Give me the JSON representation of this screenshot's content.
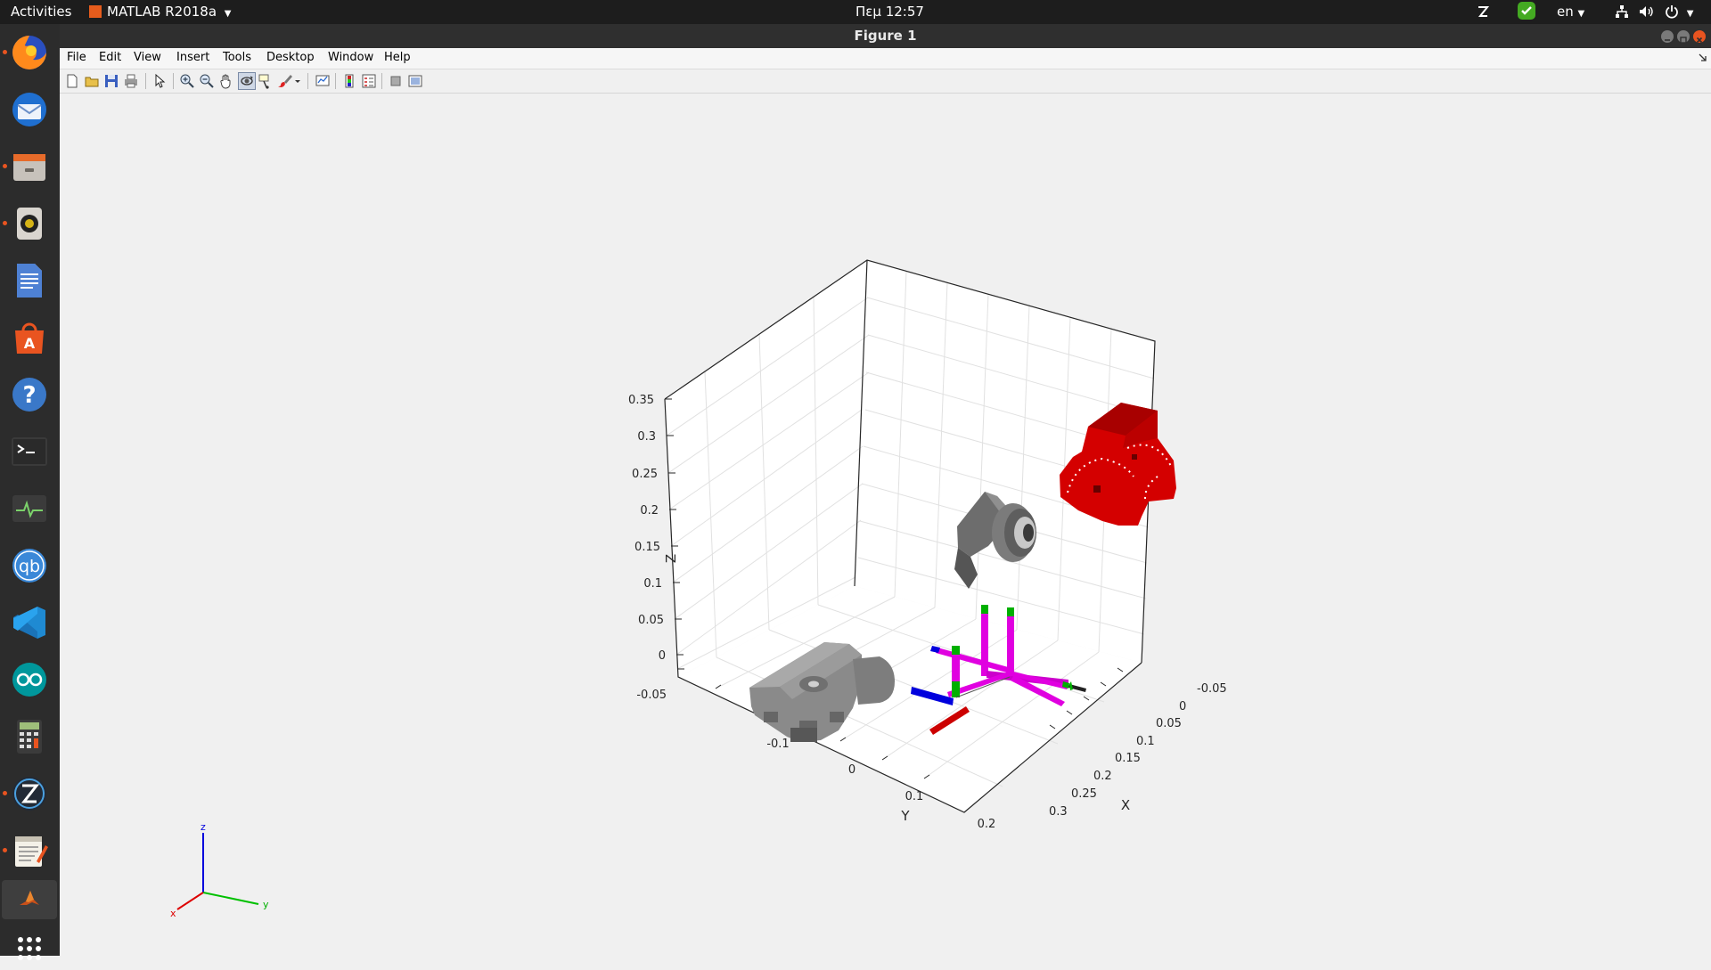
{
  "topbar": {
    "activities": "Activities",
    "app_name": "MATLAB R2018a",
    "clock": "Πεμ 12:57",
    "language": "en"
  },
  "window": {
    "title": "Figure 1"
  },
  "menubar": {
    "items": [
      "File",
      "Edit",
      "View",
      "Insert",
      "Tools",
      "Desktop",
      "Window",
      "Help"
    ]
  },
  "toolbar": {
    "buttons": [
      "new-figure",
      "open-file",
      "save-figure",
      "print-figure",
      "edit-plot",
      "zoom-in",
      "zoom-out",
      "pan",
      "rotate-3d",
      "data-cursor",
      "brush",
      "link-plot",
      "colorbar",
      "legend",
      "hide-plot-tools",
      "show-plot-tools"
    ]
  },
  "dock": {
    "apps": [
      "firefox",
      "thunderbird",
      "files",
      "rhythmbox",
      "libreoffice-writer",
      "ubuntu-software",
      "help",
      "terminal",
      "system-monitor",
      "qbittorrent",
      "vscode",
      "arduino",
      "calculator",
      "zerotier",
      "text-editor",
      "matlab",
      "show-applications"
    ]
  },
  "chart_data": {
    "type": "3d-scene",
    "xlabel": "X",
    "ylabel": "Y",
    "zlabel": "Z",
    "x_ticks": [
      "-0.05",
      "0",
      "0.05",
      "0.1",
      "0.15",
      "0.2",
      "0.25",
      "0.3"
    ],
    "y_ticks": [
      "-0.1",
      "0",
      "0.1",
      "0.2"
    ],
    "z_ticks": [
      "0.35",
      "0.3",
      "0.25",
      "0.2",
      "0.15",
      "0.1",
      "0.05",
      "0",
      "-0.05"
    ],
    "xlim": [
      -0.07,
      0.32
    ],
    "ylim": [
      -0.15,
      0.22
    ],
    "zlim": [
      -0.07,
      0.35
    ],
    "grid": true,
    "triad_labels": {
      "x": "x",
      "y": "y",
      "z": "z"
    },
    "colors": {
      "red_part": "#dd0000",
      "gray_part": "#8a8a8a",
      "magenta_link": "#e000e0",
      "green_joint": "#00b000",
      "blue_axis": "#0000dd"
    }
  }
}
